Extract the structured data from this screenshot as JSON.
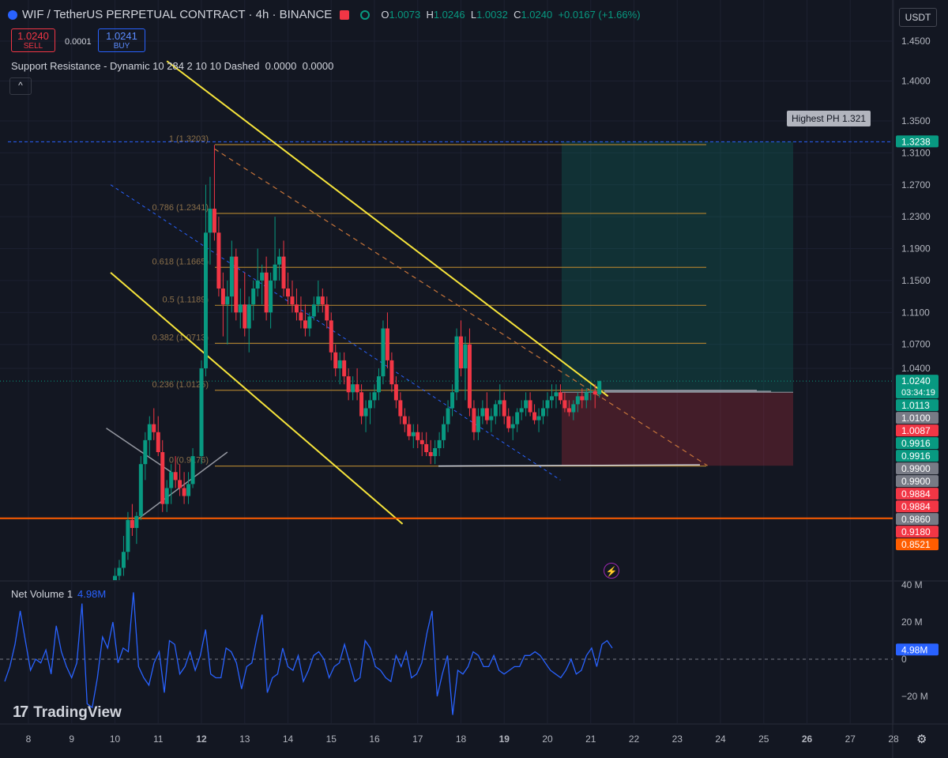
{
  "header": {
    "symbol": "WIF / TetherUS PERPETUAL CONTRACT · 4h · BINANCE",
    "o_label": "O",
    "o": "1.0073",
    "h_label": "H",
    "h": "1.0246",
    "l_label": "L",
    "l": "1.0032",
    "c_label": "C",
    "c": "1.0240",
    "change": "+0.0167 (+1.66%)"
  },
  "trade": {
    "sell_price": "1.0240",
    "sell_label": "SELL",
    "spread": "0.0001",
    "buy_price": "1.0241",
    "buy_label": "BUY"
  },
  "indicator": {
    "name": "Support Resistance - Dynamic 10 284 2 10 10 Dashed",
    "v1": "0.0000",
    "v2": "0.0000",
    "collapse": "^"
  },
  "currency": "USDT",
  "highest_ph": "Highest PH 1.321",
  "net_volume": {
    "label": "Net Volume 1",
    "value": "4.98M"
  },
  "brand": {
    "name": "TradingView",
    "logo": "17"
  },
  "gear_icon": "⚙",
  "bolt_icon": "⚡",
  "chart_data": {
    "type": "candlestick",
    "price_ticks": [
      "1.4500",
      "1.4000",
      "1.3500",
      "1.3100",
      "1.2700",
      "1.2300",
      "1.1900",
      "1.1500",
      "1.1100",
      "1.0700",
      "1.0400"
    ],
    "price_tick_values": [
      1.45,
      1.4,
      1.35,
      1.31,
      1.27,
      1.23,
      1.19,
      1.15,
      1.11,
      1.07,
      1.04
    ],
    "price_badges": [
      {
        "label": "1.3238",
        "value": 1.3238,
        "color": "#089981"
      },
      {
        "label": "1.0240",
        "value": 1.024,
        "color": "#089981",
        "sub": "03:34:19"
      },
      {
        "label": "1.0113",
        "value": 1.0113,
        "color": "#089981"
      },
      {
        "label": "1.0100",
        "value": 1.01,
        "color": "#787b86"
      },
      {
        "label": "1.0087",
        "value": 1.0087,
        "color": "#f23645"
      },
      {
        "label": "0.9916",
        "value": 0.9916,
        "color": "#089981"
      },
      {
        "label": "0.9916",
        "value": 0.9916,
        "color": "#089981"
      },
      {
        "label": "0.9900",
        "value": 0.99,
        "color": "#787b86"
      },
      {
        "label": "0.9900",
        "value": 0.99,
        "color": "#787b86"
      },
      {
        "label": "0.9884",
        "value": 0.9884,
        "color": "#f23645"
      },
      {
        "label": "0.9884",
        "value": 0.9884,
        "color": "#f23645"
      },
      {
        "label": "0.9860",
        "value": 0.986,
        "color": "#787b86"
      },
      {
        "label": "0.9180",
        "value": 0.918,
        "color": "#f23645"
      },
      {
        "label": "0.8521",
        "value": 0.8521,
        "color": "#ff5d00"
      }
    ],
    "x_ticks": [
      "8",
      "9",
      "10",
      "11",
      "12",
      "13",
      "14",
      "15",
      "16",
      "17",
      "18",
      "19",
      "20",
      "21",
      "22",
      "23",
      "24",
      "25",
      "26",
      "27",
      "28"
    ],
    "x_tick_values": [
      8,
      9,
      10,
      11,
      12,
      13,
      14,
      15,
      16,
      17,
      18,
      19,
      20,
      21,
      22,
      23,
      24,
      25,
      26,
      27,
      28
    ],
    "fib_levels": [
      {
        "label": "1 (1.3203)",
        "value": 1.3203
      },
      {
        "label": "0.786 (1.2341)",
        "value": 1.2341
      },
      {
        "label": "0.618 (1.1665)",
        "value": 1.1665
      },
      {
        "label": "0.5 (1.1189)",
        "value": 1.1189
      },
      {
        "label": "0.382 (1.0713)",
        "value": 1.0713
      },
      {
        "label": "0.236 (1.0125)",
        "value": 1.0125
      },
      {
        "label": "0 (0.9176)",
        "value": 0.9176
      }
    ],
    "candles": [
      [
        10.0,
        0.77,
        0.79,
        0.76,
        0.78
      ],
      [
        10.1,
        0.78,
        0.8,
        0.77,
        0.79
      ],
      [
        10.2,
        0.79,
        0.83,
        0.78,
        0.81
      ],
      [
        10.3,
        0.81,
        0.86,
        0.8,
        0.85
      ],
      [
        10.4,
        0.85,
        0.87,
        0.83,
        0.84
      ],
      [
        10.5,
        0.84,
        0.86,
        0.82,
        0.855
      ],
      [
        10.6,
        0.855,
        0.93,
        0.85,
        0.92
      ],
      [
        10.7,
        0.92,
        0.96,
        0.9,
        0.95
      ],
      [
        10.8,
        0.95,
        0.98,
        0.93,
        0.97
      ],
      [
        10.9,
        0.97,
        0.99,
        0.95,
        0.96
      ],
      [
        11.0,
        0.96,
        0.98,
        0.93,
        0.935
      ],
      [
        11.1,
        0.935,
        0.95,
        0.86,
        0.87
      ],
      [
        11.2,
        0.87,
        0.9,
        0.86,
        0.89
      ],
      [
        11.3,
        0.89,
        0.92,
        0.87,
        0.91
      ],
      [
        11.4,
        0.91,
        0.93,
        0.89,
        0.9
      ],
      [
        11.5,
        0.9,
        0.92,
        0.88,
        0.89
      ],
      [
        11.6,
        0.89,
        0.91,
        0.87,
        0.88
      ],
      [
        11.7,
        0.88,
        0.91,
        0.87,
        0.895
      ],
      [
        11.8,
        0.895,
        0.94,
        0.89,
        0.93
      ],
      [
        12.0,
        0.93,
        1.05,
        0.92,
        1.04
      ],
      [
        12.1,
        1.04,
        1.27,
        1.03,
        1.21
      ],
      [
        12.2,
        1.21,
        1.28,
        1.17,
        1.24
      ],
      [
        12.3,
        1.24,
        1.32,
        1.2,
        1.21
      ],
      [
        12.4,
        1.21,
        1.23,
        1.13,
        1.14
      ],
      [
        12.5,
        1.14,
        1.16,
        1.08,
        1.12
      ],
      [
        12.6,
        1.12,
        1.15,
        1.07,
        1.13
      ],
      [
        12.7,
        1.13,
        1.2,
        1.11,
        1.18
      ],
      [
        12.8,
        1.18,
        1.19,
        1.1,
        1.11
      ],
      [
        12.9,
        1.11,
        1.14,
        1.09,
        1.12
      ],
      [
        13.0,
        1.12,
        1.16,
        1.08,
        1.09
      ],
      [
        13.1,
        1.09,
        1.13,
        1.06,
        1.12
      ],
      [
        13.2,
        1.12,
        1.15,
        1.1,
        1.14
      ],
      [
        13.3,
        1.14,
        1.19,
        1.13,
        1.15
      ],
      [
        13.4,
        1.15,
        1.17,
        1.12,
        1.16
      ],
      [
        13.5,
        1.16,
        1.18,
        1.1,
        1.11
      ],
      [
        13.6,
        1.11,
        1.16,
        1.09,
        1.15
      ],
      [
        13.7,
        1.15,
        1.23,
        1.14,
        1.17
      ],
      [
        13.8,
        1.17,
        1.19,
        1.15,
        1.18
      ],
      [
        13.9,
        1.18,
        1.2,
        1.13,
        1.14
      ],
      [
        14.0,
        1.14,
        1.16,
        1.12,
        1.13
      ],
      [
        14.1,
        1.13,
        1.15,
        1.11,
        1.12
      ],
      [
        14.2,
        1.12,
        1.14,
        1.1,
        1.11
      ],
      [
        14.3,
        1.11,
        1.13,
        1.09,
        1.1
      ],
      [
        14.4,
        1.1,
        1.12,
        1.08,
        1.09
      ],
      [
        14.5,
        1.09,
        1.11,
        1.08,
        1.105
      ],
      [
        14.6,
        1.105,
        1.13,
        1.1,
        1.12
      ],
      [
        14.7,
        1.12,
        1.15,
        1.11,
        1.13
      ],
      [
        14.8,
        1.13,
        1.14,
        1.11,
        1.12
      ],
      [
        14.9,
        1.12,
        1.13,
        1.09,
        1.1
      ],
      [
        15.0,
        1.1,
        1.11,
        1.05,
        1.06
      ],
      [
        15.1,
        1.06,
        1.07,
        1.03,
        1.04
      ],
      [
        15.2,
        1.04,
        1.06,
        1.02,
        1.05
      ],
      [
        15.3,
        1.05,
        1.06,
        1.02,
        1.03
      ],
      [
        15.4,
        1.03,
        1.04,
        1.0,
        1.01
      ],
      [
        15.5,
        1.01,
        1.03,
        1.0,
        1.02
      ],
      [
        15.6,
        1.02,
        1.04,
        1.0,
        1.01
      ],
      [
        15.7,
        1.01,
        1.02,
        0.97,
        0.98
      ],
      [
        15.8,
        0.98,
        1.0,
        0.96,
        0.99
      ],
      [
        15.9,
        0.99,
        1.01,
        0.97,
        1.0
      ],
      [
        16.0,
        1.0,
        1.02,
        0.99,
        1.01
      ],
      [
        16.1,
        1.01,
        1.04,
        1.0,
        1.03
      ],
      [
        16.2,
        1.03,
        1.1,
        1.02,
        1.09
      ],
      [
        16.3,
        1.09,
        1.11,
        1.04,
        1.05
      ],
      [
        16.4,
        1.05,
        1.06,
        1.01,
        1.02
      ],
      [
        16.5,
        1.02,
        1.03,
        0.99,
        1.0
      ],
      [
        16.6,
        1.0,
        1.01,
        0.97,
        0.98
      ],
      [
        16.7,
        0.98,
        0.99,
        0.96,
        0.97
      ],
      [
        16.8,
        0.97,
        0.98,
        0.95,
        0.955
      ],
      [
        16.9,
        0.955,
        0.97,
        0.94,
        0.96
      ],
      [
        17.0,
        0.96,
        0.97,
        0.94,
        0.95
      ],
      [
        17.1,
        0.95,
        0.96,
        0.93,
        0.945
      ],
      [
        17.2,
        0.945,
        0.96,
        0.93,
        0.935
      ],
      [
        17.3,
        0.935,
        0.95,
        0.92,
        0.93
      ],
      [
        17.4,
        0.93,
        0.95,
        0.92,
        0.94
      ],
      [
        17.5,
        0.94,
        0.96,
        0.93,
        0.95
      ],
      [
        17.6,
        0.95,
        0.98,
        0.94,
        0.97
      ],
      [
        17.7,
        0.97,
        1.0,
        0.96,
        0.99
      ],
      [
        17.8,
        0.99,
        1.02,
        0.98,
        1.01
      ],
      [
        17.9,
        1.01,
        1.09,
        1.0,
        1.08
      ],
      [
        18.0,
        1.08,
        1.1,
        1.03,
        1.04
      ],
      [
        18.1,
        1.04,
        1.08,
        1.0,
        1.07
      ],
      [
        18.2,
        1.07,
        1.09,
        0.98,
        0.99
      ],
      [
        18.3,
        0.99,
        1.0,
        0.95,
        0.96
      ],
      [
        18.4,
        0.96,
        0.99,
        0.95,
        0.98
      ],
      [
        18.5,
        0.98,
        1.0,
        0.97,
        0.99
      ],
      [
        18.6,
        0.99,
        1.01,
        0.97,
        0.975
      ],
      [
        18.7,
        0.975,
        0.99,
        0.96,
        0.98
      ],
      [
        18.8,
        0.98,
        1.0,
        0.97,
        0.995
      ],
      [
        18.9,
        0.995,
        1.02,
        0.98,
        1.0
      ],
      [
        19.0,
        1.0,
        1.01,
        0.97,
        0.98
      ],
      [
        19.1,
        0.98,
        0.99,
        0.96,
        0.965
      ],
      [
        19.2,
        0.965,
        0.98,
        0.95,
        0.97
      ],
      [
        19.3,
        0.97,
        0.99,
        0.96,
        0.985
      ],
      [
        19.4,
        0.985,
        1.0,
        0.975,
        0.99
      ],
      [
        19.5,
        0.99,
        1.01,
        0.98,
        1.0
      ],
      [
        19.6,
        1.0,
        1.01,
        0.98,
        0.985
      ],
      [
        19.7,
        0.985,
        0.995,
        0.97,
        0.975
      ],
      [
        19.8,
        0.975,
        0.99,
        0.96,
        0.98
      ],
      [
        19.9,
        0.98,
        1.0,
        0.97,
        0.99
      ],
      [
        20.0,
        0.99,
        1.01,
        0.98,
        1.0
      ],
      [
        20.1,
        1.0,
        1.02,
        0.99,
        1.005
      ],
      [
        20.2,
        1.005,
        1.02,
        0.99,
        1.01
      ],
      [
        20.3,
        1.01,
        1.02,
        0.995,
        1.0
      ],
      [
        20.4,
        1.0,
        1.01,
        0.985,
        0.99
      ],
      [
        20.5,
        0.99,
        1.0,
        0.98,
        0.985
      ],
      [
        20.6,
        0.985,
        1.0,
        0.975,
        0.995
      ],
      [
        20.7,
        0.995,
        1.01,
        0.985,
        1.005
      ],
      [
        20.8,
        1.005,
        1.015,
        0.99,
        1.0
      ],
      [
        20.9,
        1.0,
        1.015,
        0.99,
        1.01
      ],
      [
        21.0,
        1.01,
        1.02,
        1.0,
        1.0113
      ],
      [
        21.1,
        1.0113,
        1.02,
        0.99,
        1.0073
      ],
      [
        21.2,
        1.0073,
        1.0246,
        1.0032,
        1.024
      ]
    ],
    "net_volume_ticks": [
      "40 M",
      "20 M",
      "0",
      "−20 M"
    ],
    "net_volume_tick_values": [
      40,
      20,
      0,
      -20
    ],
    "net_volume_badge": "4.98M",
    "net_volume_series": [
      -12,
      -4,
      8,
      26,
      10,
      -6,
      0,
      -2,
      5,
      -8,
      18,
      4,
      -4,
      -10,
      -2,
      30,
      -24,
      -26,
      -10,
      12,
      6,
      20,
      -2,
      6,
      4,
      36,
      -4,
      -10,
      -14,
      -2,
      4,
      -18,
      10,
      8,
      -8,
      -4,
      4,
      -6,
      2,
      16,
      -8,
      -10,
      -10,
      6,
      4,
      -2,
      -16,
      -4,
      -2,
      12,
      24,
      -18,
      -10,
      -8,
      6,
      -4,
      -6,
      2,
      -12,
      -6,
      2,
      4,
      0,
      -10,
      -4,
      -2,
      8,
      -2,
      -12,
      -10,
      10,
      6,
      -4,
      -6,
      -10,
      -12,
      2,
      -4,
      4,
      -10,
      -8,
      -2,
      14,
      26,
      -20,
      -8,
      2,
      -30,
      -6,
      -8,
      -4,
      4,
      2,
      -4,
      -4,
      2,
      -6,
      -8,
      -6,
      -4,
      -4,
      2,
      2,
      4,
      2,
      -2,
      -6,
      -8,
      -10,
      -6,
      0,
      -8,
      -6,
      2,
      6,
      -4,
      8,
      10,
      6
    ],
    "axis_range_price": [
      0.85,
      1.47
    ],
    "axis_range_x": [
      7.3,
      28.2
    ]
  }
}
